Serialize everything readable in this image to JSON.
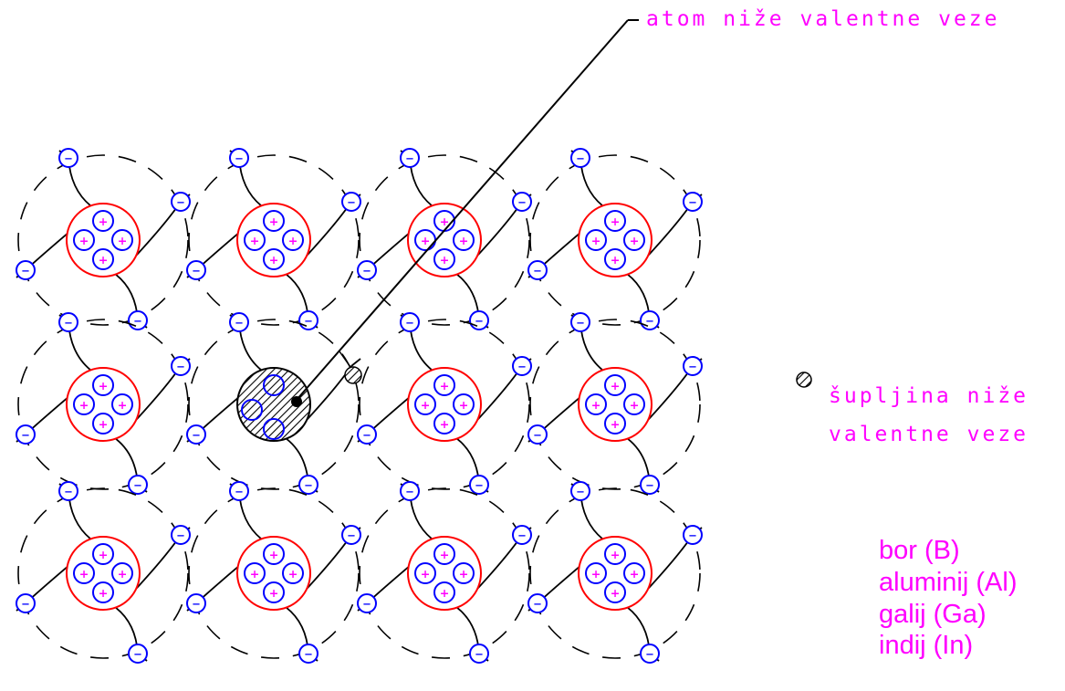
{
  "labels": {
    "acceptor_atom": "atom niže valentne veze",
    "hole_line1": "šupljina niže",
    "hole_line2": "valentne veze"
  },
  "elements": [
    "bor (B)",
    "aluminij (Al)",
    "galij (Ga)",
    "indij (In)"
  ],
  "lattice": {
    "rows": 3,
    "cols": 4,
    "acceptor_position": {
      "row": 2,
      "col": 2
    }
  },
  "symbols": {
    "electron": "−",
    "proton": "+"
  },
  "colors": {
    "label": "#ff00ff",
    "nucleus_ring": "#ff0000",
    "charge_circle": "#0000ff",
    "proton_sign": "#ff00ff",
    "bond_line": "#000000",
    "hatch": "#000000"
  }
}
